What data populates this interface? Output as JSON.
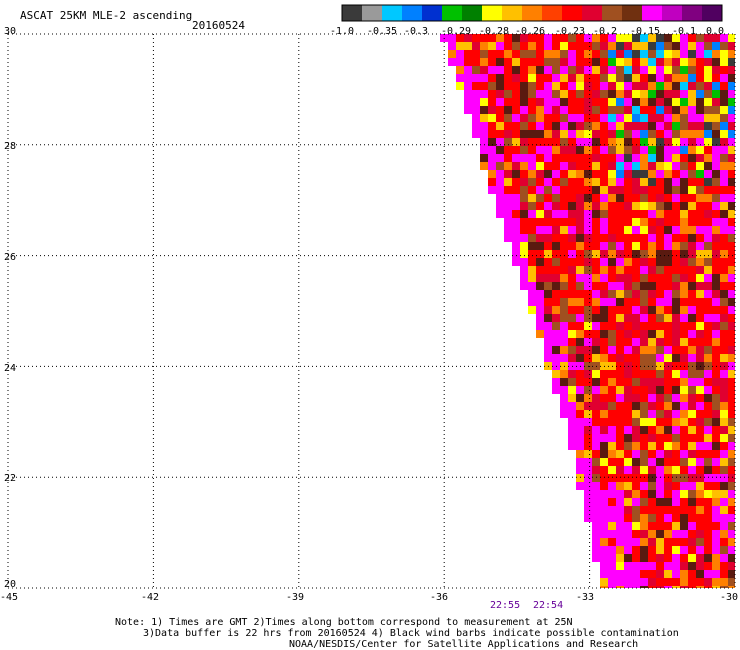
{
  "header": {
    "title": "ASCAT 25KM MLE-2 ascending",
    "date": "20160524"
  },
  "colorbar": {
    "colors": [
      "#3a3a3a",
      "#9a9a9a",
      "#00c8ff",
      "#0080ff",
      "#0030d0",
      "#00c000",
      "#008000",
      "#ffff00",
      "#ffc000",
      "#ff8000",
      "#ff4000",
      "#ff0000",
      "#e00030",
      "#a05020",
      "#703010",
      "#ff00ff",
      "#c000c0",
      "#800080",
      "#500060"
    ],
    "labels": [
      "-1.0",
      "-0.35",
      "-0.3",
      "-0.29",
      "-0.28",
      "-0.26",
      "-0.23",
      "-0.2",
      "-0.15",
      "-0.1",
      "0.0"
    ]
  },
  "axes": {
    "lat_labels": [
      "30",
      "28",
      "26",
      "24",
      "22",
      "20"
    ],
    "lon_labels": [
      "-45",
      "-42",
      "-39",
      "-36",
      "-33",
      "-30"
    ]
  },
  "pass_times": [
    "22:55",
    "22:54"
  ],
  "notes": [
    "Note: 1) Times are GMT 2)Times along bottom correspond to measurement at 25N",
    "3)Data buffer is 22 hrs from 20160524 4) Black wind barbs indicate possible contamination",
    "NOAA/NESDIS/Center for Satellite Applications and Research"
  ],
  "palette": {
    "magenta": "#ff00ff",
    "red": "#ff0000",
    "crimson": "#e00030",
    "brown": "#a05020",
    "dark_brown": "#5a1a10",
    "orange": "#ff8000",
    "yellow": "#ffff00",
    "gold": "#ffc000",
    "green": "#00c000",
    "blue": "#0080ff",
    "cyan": "#00c8ff",
    "grey": "#3a3a3a"
  }
}
